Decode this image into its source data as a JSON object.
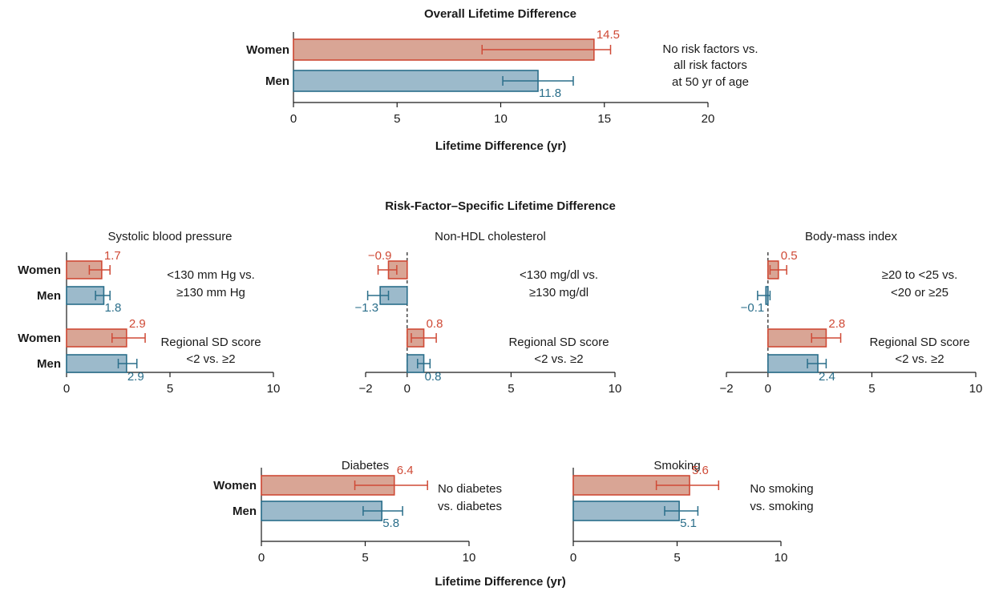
{
  "colors": {
    "women_fill": "#d9a595",
    "women_stroke": "#cf4a36",
    "men_fill": "#9cbacb",
    "men_stroke": "#2a6e8a",
    "axis": "#1a1a1a"
  },
  "figure": {
    "overall_title": "Overall Lifetime Difference",
    "specific_title": "Risk-Factor–Specific Lifetime Difference",
    "bottom_xlabel": "Lifetime Difference (yr)"
  },
  "chart_data": [
    {
      "id": "overall",
      "type": "bar",
      "orientation": "horizontal",
      "title": "",
      "xlabel": "Lifetime Difference (yr)",
      "xlim": [
        0,
        20
      ],
      "xticks": [
        0,
        5,
        10,
        15,
        20
      ],
      "xtick_labels": [
        "0",
        "5",
        "10",
        "15",
        "20"
      ],
      "zero_dashed": false,
      "groups": [
        {
          "note": [
            "No risk factors vs.",
            "all risk factors",
            "at 50 yr of age"
          ],
          "series": [
            {
              "name": "Women",
              "value": 14.5,
              "label": "14.5",
              "ci": [
                9.1,
                15.3
              ]
            },
            {
              "name": "Men",
              "value": 11.8,
              "label": "11.8",
              "ci": [
                10.1,
                13.5
              ]
            }
          ]
        }
      ]
    },
    {
      "id": "sbp",
      "type": "bar",
      "orientation": "horizontal",
      "title": "Systolic blood pressure",
      "xlim": [
        0,
        10
      ],
      "xticks": [
        0,
        5,
        10
      ],
      "xtick_labels": [
        "0",
        "5",
        "10"
      ],
      "zero_dashed": false,
      "groups": [
        {
          "note": [
            "<130 mm Hg vs.",
            "≥130 mm Hg"
          ],
          "series": [
            {
              "name": "Women",
              "value": 1.7,
              "label": "1.7",
              "ci": [
                1.1,
                2.1
              ]
            },
            {
              "name": "Men",
              "value": 1.8,
              "label": "1.8",
              "ci": [
                1.4,
                2.1
              ]
            }
          ]
        },
        {
          "note": [
            "Regional SD score",
            "<2 vs. ≥2"
          ],
          "series": [
            {
              "name": "Women",
              "value": 2.9,
              "label": "2.9",
              "ci": [
                2.2,
                3.8
              ]
            },
            {
              "name": "Men",
              "value": 2.9,
              "label": "2.9",
              "ci": [
                2.5,
                3.4
              ]
            }
          ]
        }
      ]
    },
    {
      "id": "chol",
      "type": "bar",
      "orientation": "horizontal",
      "title": "Non-HDL cholesterol",
      "xlim": [
        -2,
        10
      ],
      "xticks": [
        -2,
        0,
        5,
        10
      ],
      "xtick_labels": [
        "−2",
        "0",
        "5",
        "10"
      ],
      "zero_dashed": true,
      "groups": [
        {
          "note": [
            "<130 mg/dl vs.",
            "≥130 mg/dl"
          ],
          "series": [
            {
              "name": "Women",
              "value": -0.9,
              "label": "−0.9",
              "ci": [
                -1.4,
                -0.5
              ]
            },
            {
              "name": "Men",
              "value": -1.3,
              "label": "−1.3",
              "ci": [
                -1.9,
                -0.9
              ]
            }
          ]
        },
        {
          "note": [
            "Regional SD score",
            "<2 vs. ≥2"
          ],
          "series": [
            {
              "name": "Women",
              "value": 0.8,
              "label": "0.8",
              "ci": [
                0.2,
                1.4
              ]
            },
            {
              "name": "Men",
              "value": 0.8,
              "label": "0.8",
              "ci": [
                0.5,
                1.1
              ]
            }
          ]
        }
      ]
    },
    {
      "id": "bmi",
      "type": "bar",
      "orientation": "horizontal",
      "title": "Body-mass index",
      "xlim": [
        -2,
        10
      ],
      "xticks": [
        -2,
        0,
        5,
        10
      ],
      "xtick_labels": [
        "−2",
        "0",
        "5",
        "10"
      ],
      "zero_dashed": true,
      "groups": [
        {
          "note": [
            "≥20 to <25 vs.",
            "<20 or ≥25"
          ],
          "series": [
            {
              "name": "Women",
              "value": 0.5,
              "label": "0.5",
              "ci": [
                0.1,
                0.9
              ]
            },
            {
              "name": "Men",
              "value": -0.1,
              "label": "−0.1",
              "ci": [
                -0.5,
                0.1
              ]
            }
          ]
        },
        {
          "note": [
            "Regional SD score",
            "<2 vs. ≥2"
          ],
          "series": [
            {
              "name": "Women",
              "value": 2.8,
              "label": "2.8",
              "ci": [
                2.1,
                3.5
              ]
            },
            {
              "name": "Men",
              "value": 2.4,
              "label": "2.4",
              "ci": [
                1.9,
                2.8
              ]
            }
          ]
        }
      ]
    },
    {
      "id": "diabetes",
      "type": "bar",
      "orientation": "horizontal",
      "title": "Diabetes",
      "xlim": [
        0,
        10
      ],
      "xticks": [
        0,
        5,
        10
      ],
      "xtick_labels": [
        "0",
        "5",
        "10"
      ],
      "zero_dashed": false,
      "groups": [
        {
          "note": [
            "No diabetes",
            "vs. diabetes"
          ],
          "series": [
            {
              "name": "Women",
              "value": 6.4,
              "label": "6.4",
              "ci": [
                4.5,
                8.0
              ]
            },
            {
              "name": "Men",
              "value": 5.8,
              "label": "5.8",
              "ci": [
                4.9,
                6.8
              ]
            }
          ]
        }
      ]
    },
    {
      "id": "smoking",
      "type": "bar",
      "orientation": "horizontal",
      "title": "Smoking",
      "xlim": [
        0,
        10
      ],
      "xticks": [
        0,
        5,
        10
      ],
      "xtick_labels": [
        "0",
        "5",
        "10"
      ],
      "zero_dashed": false,
      "groups": [
        {
          "note": [
            "No smoking",
            "vs. smoking"
          ],
          "series": [
            {
              "name": "Women",
              "value": 5.6,
              "label": "5.6",
              "ci": [
                4.0,
                7.0
              ]
            },
            {
              "name": "Men",
              "value": 5.1,
              "label": "5.1",
              "ci": [
                4.4,
                6.0
              ]
            }
          ]
        }
      ]
    }
  ]
}
